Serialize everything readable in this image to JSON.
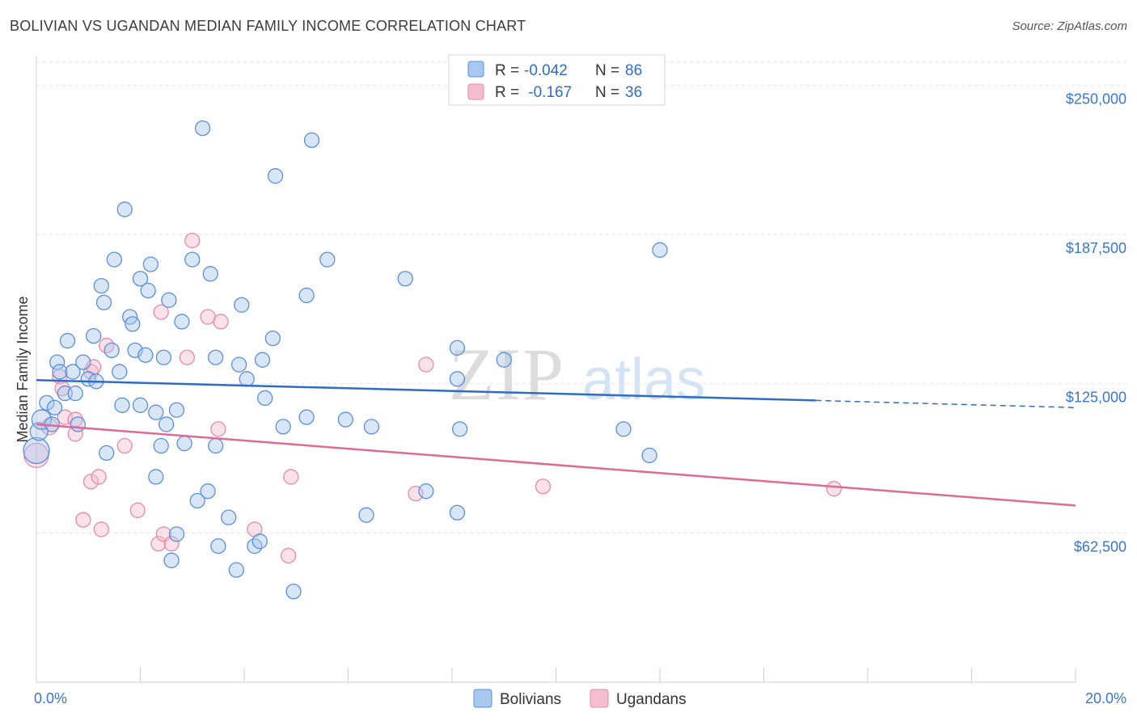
{
  "header": {
    "title": "BOLIVIAN VS UGANDAN MEDIAN FAMILY INCOME CORRELATION CHART",
    "source": "Source: ZipAtlas.com"
  },
  "watermark": {
    "zip": "ZIP",
    "atlas": "atlas"
  },
  "colors": {
    "bolivians_fill": "#a8c8f0",
    "bolivians_stroke": "#5b8fd8",
    "bolivians_line": "#2f6cc8",
    "ugandans_fill": "#f6bcd0",
    "ugandans_stroke": "#e48aab",
    "ugandans_line": "#e06a96",
    "grid": "#e3e3e3",
    "tick_text": "#3a76c9"
  },
  "chart_data": {
    "type": "scatter",
    "title": "BOLIVIAN VS UGANDAN MEDIAN FAMILY INCOME CORRELATION CHART",
    "xlabel": "",
    "ylabel": "Median Family Income",
    "xlim": [
      0,
      20
    ],
    "ylim": [
      0,
      262000
    ],
    "x_tick_labels": [
      "0.0%",
      "20.0%"
    ],
    "y_ticks": [
      62500,
      125000,
      187500,
      250000
    ],
    "y_tick_labels": [
      "$62,500",
      "$125,000",
      "$187,500",
      "$250,000"
    ],
    "legend_stats": [
      {
        "r_label": "R = ",
        "r_value": "-0.042",
        "n_label": "N = ",
        "n_value": "86"
      },
      {
        "r_label": "R = ",
        "r_value": " -0.167",
        "n_label": "N = ",
        "n_value": "36"
      }
    ],
    "series": [
      {
        "name": "Bolivians",
        "trend": {
          "x": [
            0,
            15
          ],
          "y": [
            126500,
            118000
          ],
          "dashed_to_x": 20,
          "dashed_to_y": 115000
        },
        "points": [
          [
            0.0,
            97000,
            16
          ],
          [
            0.05,
            105000,
            11
          ],
          [
            0.1,
            110000,
            12
          ],
          [
            0.2,
            117000,
            9
          ],
          [
            0.3,
            108000,
            9
          ],
          [
            0.35,
            115000,
            9
          ],
          [
            0.4,
            134000,
            9
          ],
          [
            0.45,
            130000,
            9
          ],
          [
            0.55,
            121000,
            9
          ],
          [
            0.6,
            143000,
            9
          ],
          [
            0.7,
            130000,
            9
          ],
          [
            0.75,
            121000,
            9
          ],
          [
            0.8,
            108000,
            9
          ],
          [
            0.9,
            134000,
            9
          ],
          [
            1.0,
            127000,
            9
          ],
          [
            1.1,
            145000,
            9
          ],
          [
            1.15,
            126000,
            9
          ],
          [
            1.25,
            166000,
            9
          ],
          [
            1.3,
            159000,
            9
          ],
          [
            1.35,
            96000,
            9
          ],
          [
            1.45,
            139000,
            9
          ],
          [
            1.5,
            177000,
            9
          ],
          [
            1.6,
            130000,
            9
          ],
          [
            1.65,
            116000,
            9
          ],
          [
            1.7,
            198000,
            9
          ],
          [
            1.8,
            153000,
            9
          ],
          [
            1.85,
            150000,
            9
          ],
          [
            1.9,
            139000,
            9
          ],
          [
            2.0,
            116000,
            9
          ],
          [
            2.0,
            169000,
            9
          ],
          [
            2.1,
            137000,
            9
          ],
          [
            2.15,
            164000,
            9
          ],
          [
            2.2,
            175000,
            9
          ],
          [
            2.3,
            113000,
            9
          ],
          [
            2.3,
            86000,
            9
          ],
          [
            2.4,
            99000,
            9
          ],
          [
            2.45,
            136000,
            9
          ],
          [
            2.5,
            108000,
            9
          ],
          [
            2.55,
            160000,
            9
          ],
          [
            2.6,
            51000,
            9
          ],
          [
            2.7,
            114000,
            9
          ],
          [
            2.7,
            62000,
            9
          ],
          [
            2.8,
            151000,
            9
          ],
          [
            2.85,
            100000,
            9
          ],
          [
            3.0,
            177000,
            9
          ],
          [
            3.1,
            76000,
            9
          ],
          [
            3.2,
            232000,
            9
          ],
          [
            3.3,
            80000,
            9
          ],
          [
            3.35,
            171000,
            9
          ],
          [
            3.45,
            136000,
            9
          ],
          [
            3.45,
            99000,
            9
          ],
          [
            3.5,
            57000,
            9
          ],
          [
            3.7,
            69000,
            9
          ],
          [
            3.85,
            47000,
            9
          ],
          [
            3.9,
            133000,
            9
          ],
          [
            3.95,
            158000,
            9
          ],
          [
            4.05,
            127000,
            9
          ],
          [
            4.2,
            57000,
            9
          ],
          [
            4.3,
            59000,
            9
          ],
          [
            4.35,
            135000,
            9
          ],
          [
            4.4,
            119000,
            9
          ],
          [
            4.55,
            144000,
            9
          ],
          [
            4.6,
            212000,
            9
          ],
          [
            4.75,
            107000,
            9
          ],
          [
            4.95,
            38000,
            9
          ],
          [
            5.2,
            162000,
            9
          ],
          [
            5.2,
            111000,
            9
          ],
          [
            5.3,
            227000,
            9
          ],
          [
            5.6,
            177000,
            9
          ],
          [
            5.95,
            110000,
            9
          ],
          [
            6.35,
            70000,
            9
          ],
          [
            6.45,
            107000,
            9
          ],
          [
            7.1,
            169000,
            9
          ],
          [
            7.5,
            80000,
            9
          ],
          [
            8.1,
            71000,
            9
          ],
          [
            8.1,
            140000,
            9
          ],
          [
            8.1,
            127000,
            9
          ],
          [
            8.15,
            106000,
            9
          ],
          [
            9.0,
            135000,
            9
          ],
          [
            11.3,
            106000,
            9
          ],
          [
            11.8,
            95000,
            9
          ],
          [
            12.0,
            181000,
            9
          ]
        ]
      },
      {
        "name": "Ugandans",
        "trend": {
          "x": [
            0,
            20
          ],
          "y": [
            108000,
            74000
          ]
        },
        "points": [
          [
            0.0,
            95000,
            15
          ],
          [
            0.25,
            107000,
            10
          ],
          [
            0.45,
            128000,
            9
          ],
          [
            0.5,
            123000,
            9
          ],
          [
            0.55,
            111000,
            9
          ],
          [
            0.75,
            110000,
            9
          ],
          [
            0.75,
            104000,
            9
          ],
          [
            0.9,
            68000,
            9
          ],
          [
            1.05,
            130000,
            9
          ],
          [
            1.05,
            84000,
            9
          ],
          [
            1.1,
            132000,
            9
          ],
          [
            1.2,
            86000,
            9
          ],
          [
            1.25,
            64000,
            9
          ],
          [
            1.35,
            141000,
            9
          ],
          [
            1.7,
            99000,
            9
          ],
          [
            1.95,
            72000,
            9
          ],
          [
            2.35,
            58000,
            9
          ],
          [
            2.4,
            155000,
            9
          ],
          [
            2.45,
            62000,
            9
          ],
          [
            2.6,
            58000,
            9
          ],
          [
            2.9,
            136000,
            9
          ],
          [
            3.0,
            185000,
            9
          ],
          [
            3.3,
            153000,
            9
          ],
          [
            3.5,
            106000,
            9
          ],
          [
            3.55,
            151000,
            9
          ],
          [
            4.2,
            64000,
            9
          ],
          [
            4.85,
            53000,
            9
          ],
          [
            4.9,
            86000,
            9
          ],
          [
            7.3,
            79000,
            9
          ],
          [
            7.5,
            133000,
            9
          ],
          [
            9.75,
            82000,
            9
          ],
          [
            15.35,
            81000,
            9
          ]
        ]
      }
    ]
  },
  "bottom_legend": [
    {
      "label": "Bolivians"
    },
    {
      "label": "Ugandans"
    }
  ]
}
